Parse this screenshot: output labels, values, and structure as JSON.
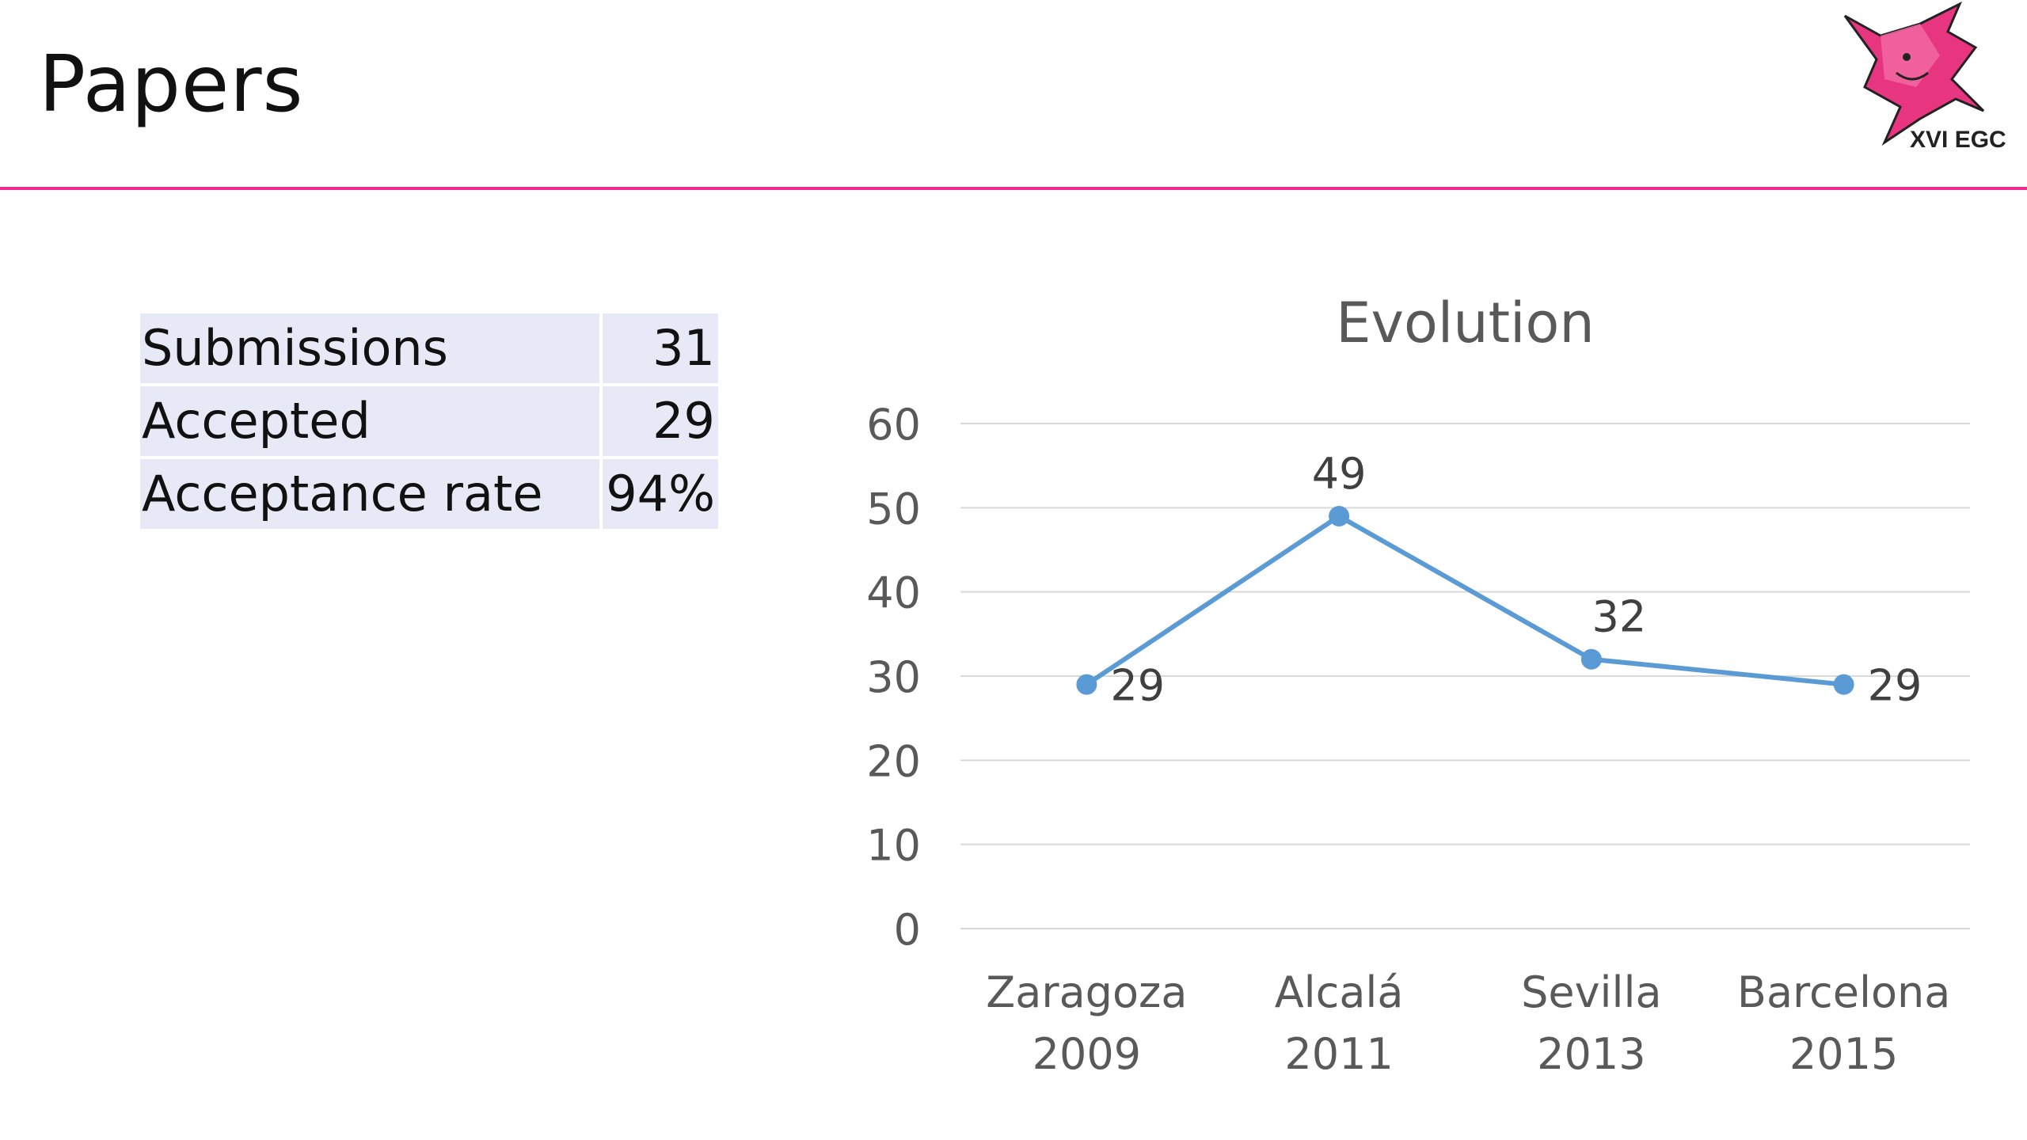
{
  "slide": {
    "title": "Papers",
    "logo_text": "XVI EGC"
  },
  "stats": {
    "rows": [
      {
        "label": "Submissions",
        "value": "31"
      },
      {
        "label": "Accepted",
        "value": "29"
      },
      {
        "label": "Acceptance rate",
        "value": "94%"
      }
    ]
  },
  "colors": {
    "accent_rule": "#ee2f8e",
    "logo_pink": "#e8357f",
    "series_line": "#5b9bd5",
    "table_fill": "#e7eaf6",
    "gridline": "#d9d9d9"
  },
  "icons": {
    "logo": "egc-mascot-logo"
  },
  "chart_data": {
    "type": "line",
    "title": "Evolution",
    "categories": [
      [
        "Zaragoza",
        "2009"
      ],
      [
        "Alcalá",
        "2011"
      ],
      [
        "Sevilla",
        "2013"
      ],
      [
        "Barcelona",
        "2015"
      ]
    ],
    "series": [
      {
        "values": [
          29,
          49,
          32,
          29
        ],
        "data_labels": [
          "29",
          "49",
          "32",
          "29"
        ]
      }
    ],
    "ylim": [
      0,
      60
    ],
    "yticks": [
      "0",
      "10",
      "20",
      "30",
      "40",
      "50",
      "60"
    ],
    "grid": true,
    "legend": "none",
    "xlabel": "",
    "ylabel": ""
  }
}
